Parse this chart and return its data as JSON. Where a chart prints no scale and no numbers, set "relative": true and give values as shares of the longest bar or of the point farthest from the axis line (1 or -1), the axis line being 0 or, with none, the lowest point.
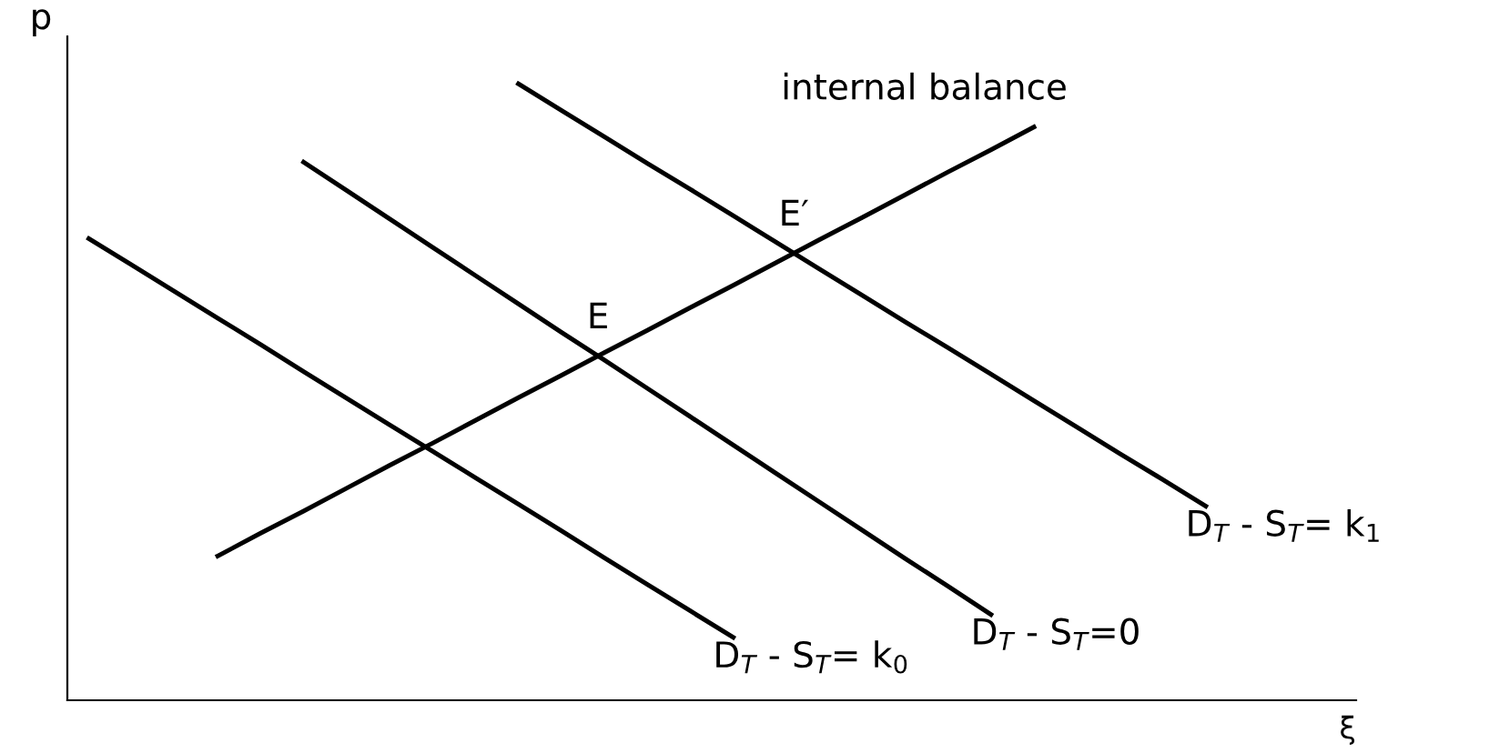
{
  "chart_data": {
    "type": "line",
    "relative": true,
    "xlabel": "ξ",
    "ylabel": "p",
    "tick_labels": false,
    "legend": false,
    "marker": "none",
    "line_style": "solid",
    "categories": [
      null,
      null,
      null,
      null,
      null,
      null,
      null,
      null,
      null,
      null,
      null,
      null,
      null,
      null,
      null,
      null,
      null,
      null,
      null,
      null,
      null,
      null,
      null,
      null,
      null,
      null,
      null,
      null,
      null,
      null
    ],
    "series": [
      {
        "name": "D$_{T}$ - S$_{T}$= k$_{0}$",
        "color": "#000000",
        "values": [
          0.749,
          0.706,
          0.663,
          0.62,
          0.577,
          0.533,
          0.49,
          0.447,
          0.404,
          0.361,
          0.318,
          0.275,
          0.231,
          0.188,
          0.145,
          0.102,
          null,
          null,
          null,
          null,
          null,
          null,
          null,
          null,
          null,
          null,
          null,
          null,
          null,
          null
        ]
      },
      {
        "name": "D$_{T}$ - S$_{T}$=0",
        "color": "#000000",
        "values": [
          null,
          null,
          null,
          null,
          null,
          0.873,
          0.827,
          0.781,
          0.735,
          0.689,
          0.643,
          0.597,
          0.552,
          0.506,
          0.46,
          0.414,
          0.368,
          0.322,
          0.276,
          0.23,
          0.185,
          0.139,
          null,
          null,
          null,
          null,
          null,
          null,
          null,
          null
        ]
      },
      {
        "name": "D$_{T}$ - S$_{T}$= k$_{1}$",
        "color": "#000000",
        "values": [
          null,
          null,
          null,
          null,
          null,
          null,
          null,
          null,
          null,
          null,
          1,
          0.957,
          0.914,
          0.871,
          0.829,
          0.786,
          0.743,
          0.7,
          0.657,
          0.614,
          0.572,
          0.529,
          0.486,
          0.443,
          0.4,
          0.358,
          0.315,
          null,
          null,
          null
        ]
      },
      {
        "name": "internal balance",
        "color": "#000000",
        "values": [
          null,
          null,
          null,
          0.234,
          0.271,
          0.307,
          0.344,
          0.381,
          0.417,
          0.454,
          0.491,
          0.527,
          0.564,
          0.6,
          0.637,
          0.673,
          0.71,
          0.747,
          0.783,
          0.82,
          0.857,
          0.893,
          0.93,
          null,
          null,
          null,
          null,
          null,
          null,
          null
        ]
      }
    ],
    "annotations": [
      "E",
      "E′"
    ]
  }
}
